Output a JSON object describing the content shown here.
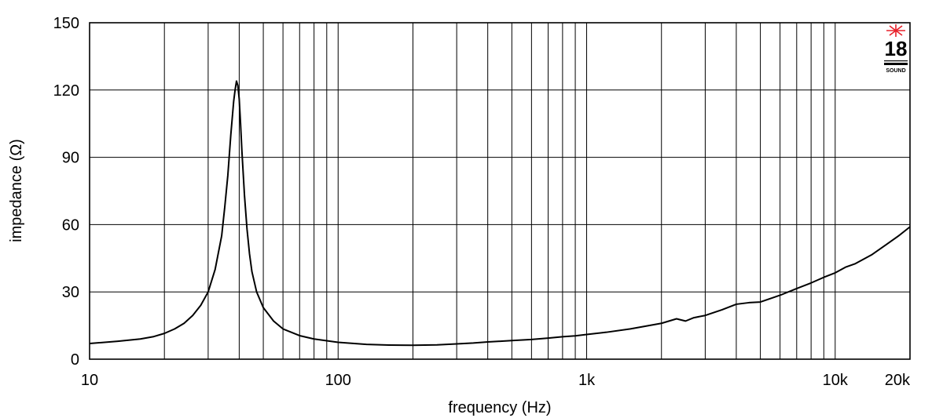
{
  "chart_data": {
    "type": "line",
    "title": "",
    "xlabel": "frequency (Hz)",
    "ylabel": "impedance (Ω)",
    "xscale": "log",
    "xlim": [
      10,
      20000
    ],
    "ylim": [
      0,
      150
    ],
    "grid": true,
    "legend": "none",
    "x_ticks": [
      {
        "value": 10,
        "label": "10"
      },
      {
        "value": 100,
        "label": "100"
      },
      {
        "value": 1000,
        "label": "1k"
      },
      {
        "value": 10000,
        "label": "10k"
      },
      {
        "value": 20000,
        "label": "20k"
      }
    ],
    "y_ticks": [
      {
        "value": 0,
        "label": "0"
      },
      {
        "value": 30,
        "label": "30"
      },
      {
        "value": 60,
        "label": "60"
      },
      {
        "value": 90,
        "label": "90"
      },
      {
        "value": 120,
        "label": "120"
      },
      {
        "value": 150,
        "label": "150"
      }
    ],
    "x_gridlines": [
      20,
      30,
      40,
      50,
      60,
      70,
      80,
      90,
      100,
      200,
      300,
      400,
      500,
      600,
      700,
      800,
      900,
      1000,
      2000,
      3000,
      4000,
      5000,
      6000,
      7000,
      8000,
      9000,
      10000
    ],
    "y_gridlines": [
      30,
      60,
      90,
      120
    ],
    "series": [
      {
        "x": [
          10,
          13,
          16,
          18,
          20,
          22,
          24,
          26,
          28,
          30,
          32,
          34,
          35,
          36,
          37,
          38,
          38.5,
          39,
          39.5,
          40,
          40.5,
          41,
          42,
          43,
          44,
          45,
          47,
          50,
          55,
          60,
          70,
          80,
          100,
          130,
          160,
          200,
          250,
          300,
          350,
          400,
          450,
          500,
          600,
          700,
          800,
          900,
          1000,
          1200,
          1500,
          2000,
          2300,
          2500,
          2700,
          3000,
          3500,
          4000,
          4500,
          5000,
          6000,
          7000,
          8000,
          9000,
          10000,
          11000,
          12000,
          14000,
          16000,
          18000,
          20000
        ],
        "y": [
          7,
          8,
          9,
          10,
          11.5,
          13.5,
          16,
          19.5,
          24,
          30,
          40,
          55,
          68,
          82,
          100,
          115,
          120,
          124,
          122,
          116,
          105,
          93,
          73,
          58,
          47,
          39,
          30,
          23,
          17,
          13.5,
          10.5,
          9,
          7.5,
          6.6,
          6.3,
          6.2,
          6.4,
          6.8,
          7.2,
          7.7,
          8,
          8.3,
          8.8,
          9.4,
          10,
          10.4,
          11,
          12,
          13.5,
          16,
          18,
          17,
          18.5,
          19.5,
          22,
          24.5,
          25.2,
          25.5,
          28.5,
          31.5,
          34,
          36.5,
          38.5,
          41,
          42.5,
          46.5,
          51,
          55,
          59
        ]
      }
    ]
  }
}
